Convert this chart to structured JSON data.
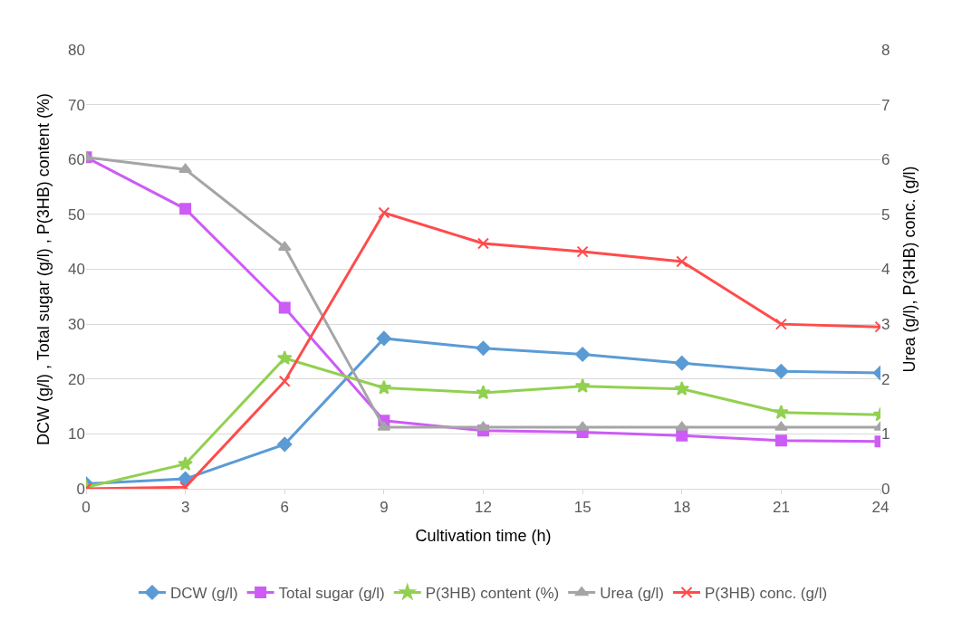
{
  "chart_data": {
    "type": "line",
    "xlabel": "Cultivation time (h)",
    "ylabel": "DCW (g/l) , Total sugar (g/l) , P(3HB) content (%)",
    "y2label": "Urea (g/l), P(3HB) conc. (g/l)",
    "x": [
      0,
      3,
      6,
      9,
      12,
      15,
      18,
      21,
      24
    ],
    "xlim": [
      0,
      24
    ],
    "xticks": [
      0,
      3,
      6,
      9,
      12,
      15,
      18,
      21,
      24
    ],
    "ylim": [
      0,
      80
    ],
    "yticks": [
      0,
      10,
      20,
      30,
      40,
      50,
      60,
      70,
      80
    ],
    "y2lim": [
      0,
      8
    ],
    "y2ticks": [
      0,
      1,
      2,
      3,
      4,
      5,
      6,
      7,
      8
    ],
    "grid": "y",
    "legend": "bottom",
    "line_style": "solid",
    "series": [
      {
        "name": "DCW (g/l)",
        "color": "#5b9bd5",
        "marker": "diamond",
        "values": [
          0.9,
          1.8,
          8.1,
          27.4,
          25.6,
          24.5,
          22.9,
          21.4,
          21.1
        ]
      },
      {
        "name": "Total sugar (g/l)",
        "color": "#cc5cf5",
        "marker": "square",
        "values": [
          60.4,
          51,
          33,
          12.4,
          10.6,
          10.3,
          9.7,
          8.8,
          8.6
        ]
      },
      {
        "name": "P(3HB) content (%)",
        "color": "#92d050",
        "marker": "star",
        "values": [
          0.3,
          4.5,
          23.8,
          18.4,
          17.5,
          18.7,
          18.2,
          13.9,
          13.5
        ]
      },
      {
        "name": "Urea (g/l)",
        "color": "#a5a5a5",
        "marker": "triangle",
        "axis": "y2",
        "values": [
          6.04,
          5.82,
          4.4,
          1.12,
          1.12,
          1.12,
          1.12,
          1.12,
          1.12
        ]
      },
      {
        "name": "P(3HB) conc. (g/l)",
        "color": "#ff4b4b",
        "marker": "cross",
        "axis": "y2",
        "values": [
          0,
          0.03,
          1.96,
          5.03,
          4.47,
          4.32,
          4.14,
          3.0,
          2.95
        ]
      }
    ]
  }
}
